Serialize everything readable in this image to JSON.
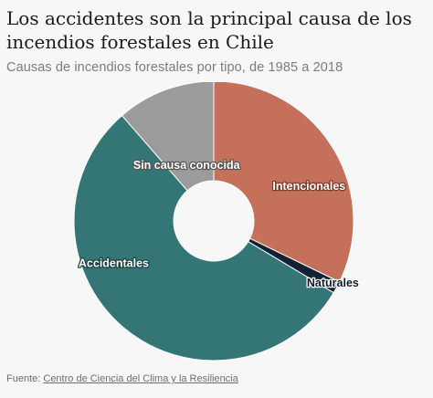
{
  "header": {
    "title": "Los accidentes son la principal causa de los incendios forestales en Chile",
    "subtitle": "Causas de incendios forestales por tipo, de 1985 a 2018"
  },
  "footer": {
    "source_prefix": "Fuente:",
    "source_link": "Centro de Ciencia del Clima y la Resiliencia"
  },
  "chart_data": {
    "type": "pie",
    "variant": "donut",
    "title": "Los accidentes son la principal causa de los incendios forestales en Chile",
    "subtitle": "Causas de incendios forestales por tipo, de 1985 a 2018",
    "legend": "labels on slices",
    "slices": [
      {
        "label": "Intencionales",
        "value": 32.2,
        "color": "#c4705b",
        "text_color": "#ffffff",
        "outline_color": "#7e3a2a"
      },
      {
        "label": "Naturales",
        "value": 1.4,
        "color": "#142033",
        "text_color": "#101b2c",
        "outline_color": "#ffffff"
      },
      {
        "label": "Accidentales",
        "value": 55.0,
        "color": "#347676",
        "text_color": "#ffffff",
        "outline_color": "#1b3f3f"
      },
      {
        "label": "Sin causa conocida",
        "value": 11.4,
        "color": "#9b9b9b",
        "text_color": "#ffffff",
        "outline_color": "#555555"
      }
    ]
  }
}
